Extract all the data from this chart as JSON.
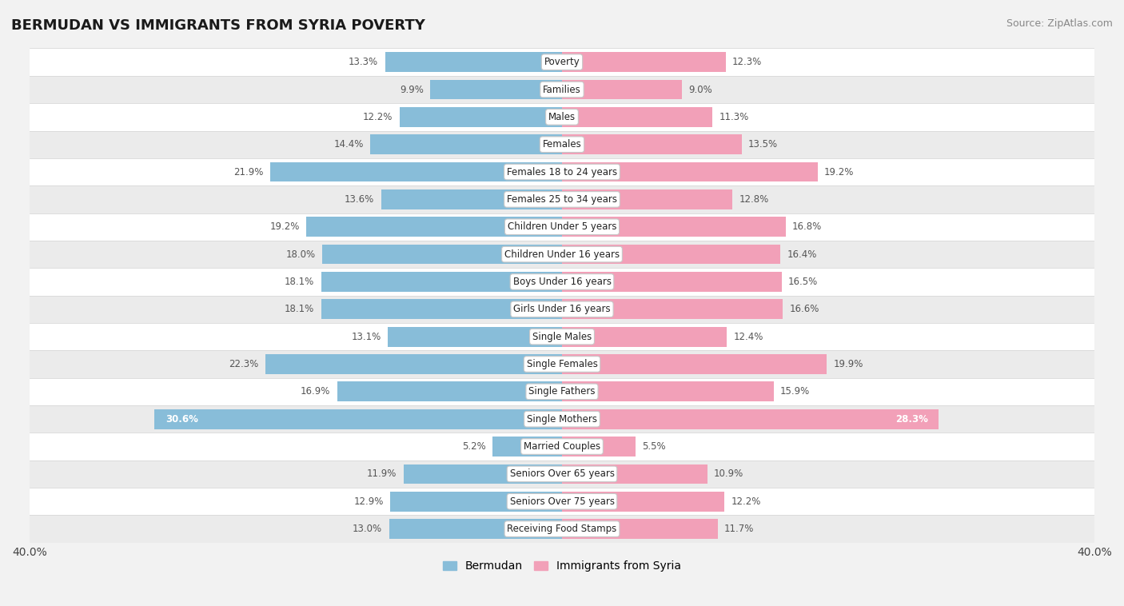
{
  "title": "BERMUDAN VS IMMIGRANTS FROM SYRIA POVERTY",
  "source": "Source: ZipAtlas.com",
  "categories": [
    "Poverty",
    "Families",
    "Males",
    "Females",
    "Females 18 to 24 years",
    "Females 25 to 34 years",
    "Children Under 5 years",
    "Children Under 16 years",
    "Boys Under 16 years",
    "Girls Under 16 years",
    "Single Males",
    "Single Females",
    "Single Fathers",
    "Single Mothers",
    "Married Couples",
    "Seniors Over 65 years",
    "Seniors Over 75 years",
    "Receiving Food Stamps"
  ],
  "bermudan": [
    13.3,
    9.9,
    12.2,
    14.4,
    21.9,
    13.6,
    19.2,
    18.0,
    18.1,
    18.1,
    13.1,
    22.3,
    16.9,
    30.6,
    5.2,
    11.9,
    12.9,
    13.0
  ],
  "syria": [
    12.3,
    9.0,
    11.3,
    13.5,
    19.2,
    12.8,
    16.8,
    16.4,
    16.5,
    16.6,
    12.4,
    19.9,
    15.9,
    28.3,
    5.5,
    10.9,
    12.2,
    11.7
  ],
  "bermudan_color": "#88bdd9",
  "syria_color": "#f2a0b8",
  "bg_color": "#f2f2f2",
  "row_even_color": "#ffffff",
  "row_odd_color": "#ebebeb",
  "xlim": 40.0,
  "label_color": "#555555",
  "title_color": "#1a1a1a",
  "title_fontsize": 13,
  "source_fontsize": 9,
  "value_fontsize": 8.5,
  "cat_fontsize": 8.5,
  "legend_fontsize": 10,
  "legend_bermudan": "Bermudan",
  "legend_syria": "Immigrants from Syria",
  "bar_height": 0.72,
  "row_border_color": "#d8d8d8"
}
